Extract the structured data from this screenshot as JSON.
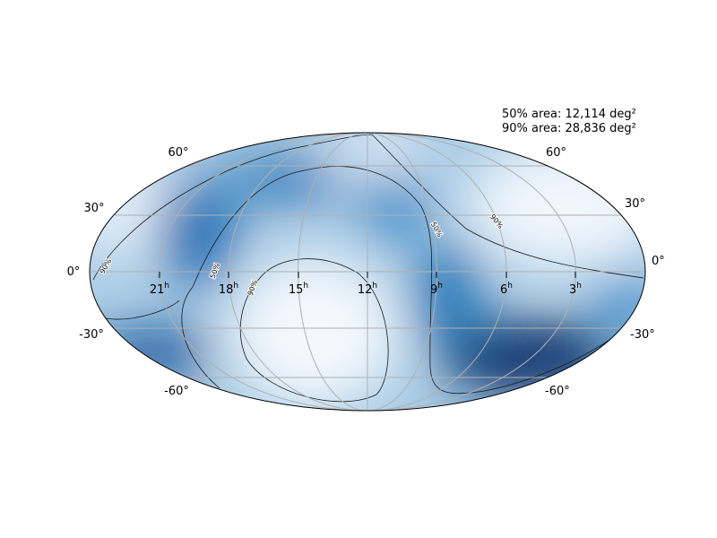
{
  "annotations": [
    "50% area: 12,114 deg²",
    "90% area: 28,836 deg²"
  ],
  "ra_labels": [
    "21",
    "18",
    "15",
    "12",
    "9",
    "6",
    "3"
  ],
  "ra_unit": "h",
  "dec_labels": [
    "60°",
    "30°",
    "0°",
    "-30°",
    "-60°"
  ],
  "contour_levels": [
    "50%",
    "90%"
  ]
}
